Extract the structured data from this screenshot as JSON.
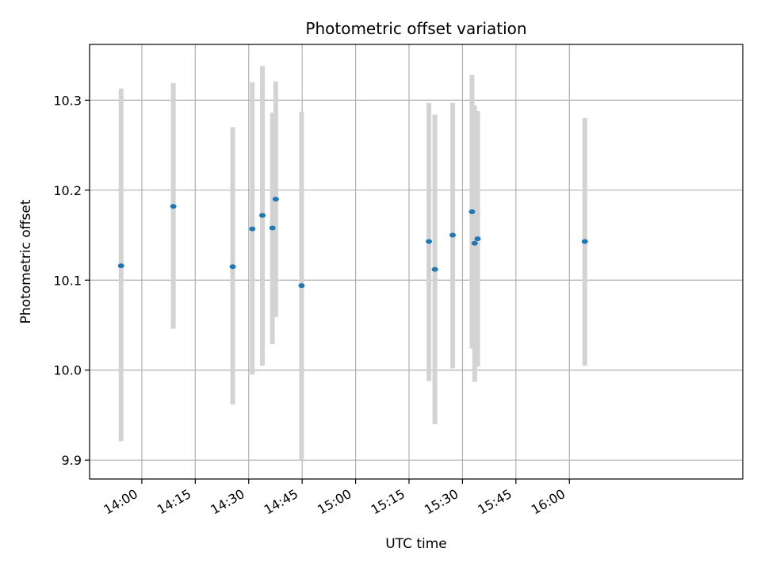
{
  "chart_data": {
    "type": "scatter",
    "title": "Photometric offset variation",
    "xlabel": "UTC time",
    "ylabel": "Photometric offset",
    "x_ticks": [
      "14:00",
      "14:15",
      "14:30",
      "14:45",
      "15:00",
      "15:15",
      "15:30",
      "15:45",
      "16:00"
    ],
    "y_ticks": [
      "9.9",
      "10.0",
      "10.1",
      "10.2",
      "10.3"
    ],
    "xlim": [
      "13:45:20",
      "16:48:40"
    ],
    "ylim": [
      9.879,
      10.362
    ],
    "grid": true,
    "marker_color": "#1f77b4",
    "errorbar_color": "#d3d3d3",
    "points": [
      {
        "x": "13:54:10",
        "y": 10.116,
        "yerr_low": 9.921,
        "yerr_high": 10.313
      },
      {
        "x": "14:08:50",
        "y": 10.182,
        "yerr_low": 10.046,
        "yerr_high": 10.319
      },
      {
        "x": "14:25:30",
        "y": 10.115,
        "yerr_low": 9.962,
        "yerr_high": 10.27
      },
      {
        "x": "14:31:00",
        "y": 10.157,
        "yerr_low": 9.995,
        "yerr_high": 10.32
      },
      {
        "x": "14:33:50",
        "y": 10.172,
        "yerr_low": 10.005,
        "yerr_high": 10.338
      },
      {
        "x": "14:36:40",
        "y": 10.158,
        "yerr_low": 10.029,
        "yerr_high": 10.286
      },
      {
        "x": "14:37:35",
        "y": 10.19,
        "yerr_low": 10.059,
        "yerr_high": 10.321
      },
      {
        "x": "14:44:50",
        "y": 10.094,
        "yerr_low": 9.9,
        "yerr_high": 10.287
      },
      {
        "x": "15:20:35",
        "y": 10.143,
        "yerr_low": 9.988,
        "yerr_high": 10.297
      },
      {
        "x": "15:22:15",
        "y": 10.112,
        "yerr_low": 9.94,
        "yerr_high": 10.284
      },
      {
        "x": "15:27:15",
        "y": 10.15,
        "yerr_low": 10.002,
        "yerr_high": 10.297
      },
      {
        "x": "15:32:40",
        "y": 10.176,
        "yerr_low": 10.024,
        "yerr_high": 10.328
      },
      {
        "x": "15:33:25",
        "y": 10.141,
        "yerr_low": 9.987,
        "yerr_high": 10.294
      },
      {
        "x": "15:34:15",
        "y": 10.146,
        "yerr_low": 10.004,
        "yerr_high": 10.288
      },
      {
        "x": "16:04:20",
        "y": 10.143,
        "yerr_low": 10.005,
        "yerr_high": 10.28
      }
    ]
  }
}
